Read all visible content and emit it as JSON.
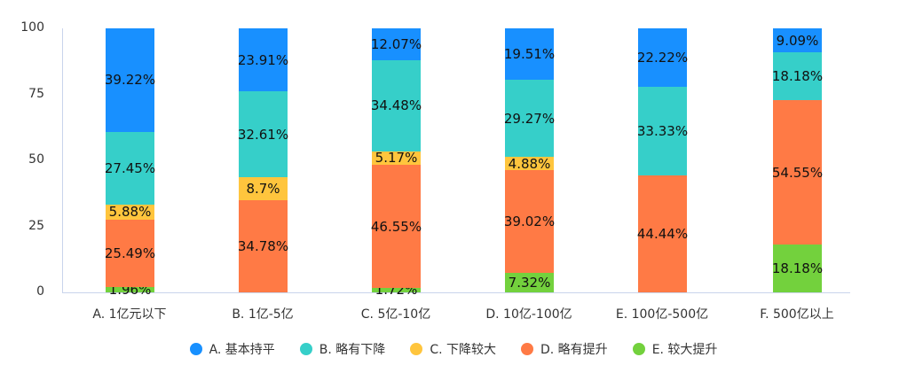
{
  "chart_data": {
    "type": "bar",
    "stacked": true,
    "title": "",
    "xlabel": "",
    "ylabel": "",
    "ylim": [
      0,
      100
    ],
    "yticks": [
      "0",
      "25",
      "50",
      "75",
      "100"
    ],
    "grid": false,
    "legend_position": "bottom",
    "categories": [
      "A. 1亿元以下",
      "B. 1亿-5亿",
      "C. 5亿-10亿",
      "D. 10亿-100亿",
      "E. 100亿-500亿",
      "F. 500亿以上"
    ],
    "series": [
      {
        "name": "E. 较大提升",
        "color": "#73d13d",
        "values": [
          1.96,
          0,
          1.72,
          7.32,
          0,
          18.18
        ]
      },
      {
        "name": "D. 略有提升",
        "color": "#ff7a45",
        "values": [
          25.49,
          34.78,
          46.55,
          39.02,
          44.44,
          54.55
        ]
      },
      {
        "name": "C. 下降较大",
        "color": "#ffc53d",
        "values": [
          5.88,
          8.7,
          5.17,
          4.88,
          0,
          0
        ]
      },
      {
        "name": "B. 略有下降",
        "color": "#36cfc9",
        "values": [
          27.45,
          32.61,
          34.48,
          29.27,
          33.33,
          18.18
        ]
      },
      {
        "name": "A. 基本持平",
        "color": "#1890ff",
        "values": [
          39.22,
          23.91,
          12.07,
          19.51,
          22.22,
          9.09
        ]
      }
    ],
    "legend": [
      {
        "name": "A. 基本持平",
        "color": "#1890ff"
      },
      {
        "name": "B. 略有下降",
        "color": "#36cfc9"
      },
      {
        "name": "C. 下降较大",
        "color": "#ffc53d"
      },
      {
        "name": "D. 略有提升",
        "color": "#ff7a45"
      },
      {
        "name": "E. 较大提升",
        "color": "#73d13d"
      }
    ]
  }
}
